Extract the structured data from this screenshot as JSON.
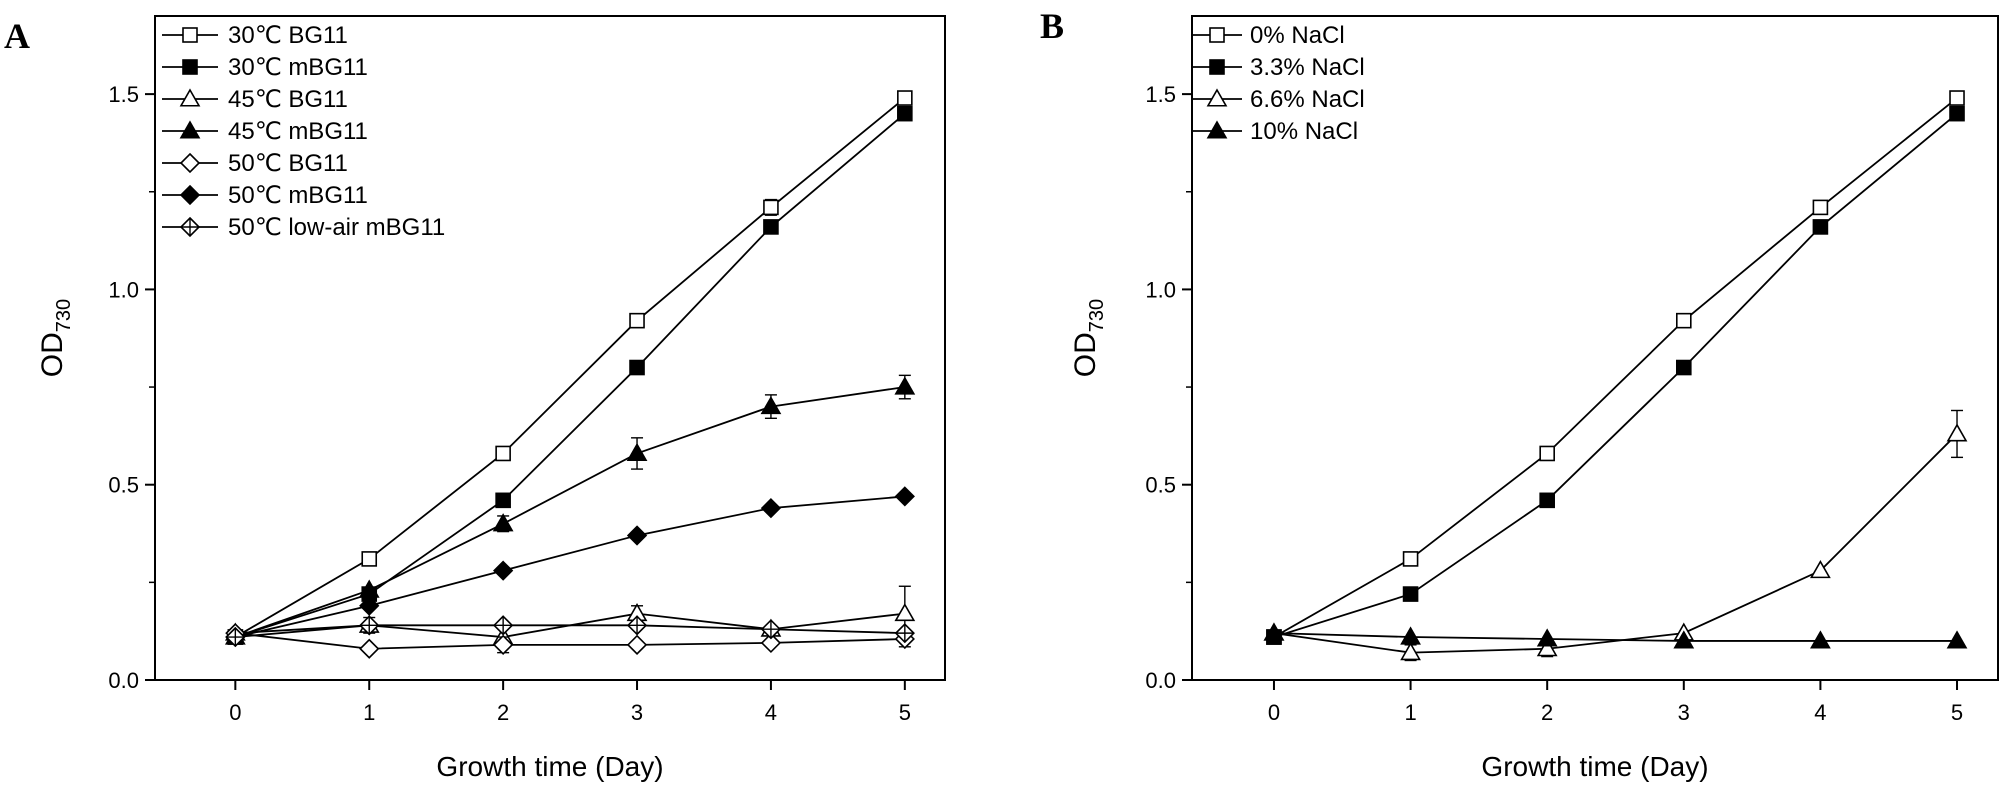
{
  "chart_data": [
    {
      "type": "line",
      "panel_label": "A",
      "xlabel": "Growth time (Day)",
      "ylabel_main": "OD",
      "ylabel_sub": "730",
      "xlim": [
        -0.6,
        5.3
      ],
      "ylim": [
        0,
        1.7
      ],
      "xticks": [
        0,
        1,
        2,
        3,
        4,
        5
      ],
      "yticks": [
        0.0,
        0.5,
        1.0,
        1.5
      ],
      "ytick_labels": [
        "0.0",
        "0.5",
        "1.0",
        "1.5"
      ],
      "grid": false,
      "legend_position": "top-left",
      "x": [
        0,
        1,
        2,
        3,
        4,
        5
      ],
      "series": [
        {
          "name": "30℃ BG11",
          "marker": "square-open",
          "values": [
            0.11,
            0.31,
            0.58,
            0.92,
            1.21,
            1.49
          ],
          "errors": [
            0,
            0,
            0,
            0,
            0.02,
            0
          ]
        },
        {
          "name": "30℃ mBG11",
          "marker": "square-filled",
          "values": [
            0.11,
            0.22,
            0.46,
            0.8,
            1.16,
            1.45
          ],
          "errors": [
            0,
            0,
            0,
            0,
            0,
            0
          ]
        },
        {
          "name": "45℃ BG11",
          "marker": "triangle-open",
          "values": [
            0.12,
            0.14,
            0.11,
            0.17,
            0.13,
            0.17
          ],
          "errors": [
            0,
            0,
            0,
            0.02,
            0,
            0.07
          ]
        },
        {
          "name": "45℃ mBG11",
          "marker": "triangle-filled",
          "values": [
            0.11,
            0.23,
            0.4,
            0.58,
            0.7,
            0.75
          ],
          "errors": [
            0,
            0,
            0.02,
            0.04,
            0.03,
            0.03
          ]
        },
        {
          "name": "50℃ BG11",
          "marker": "diamond-open",
          "values": [
            0.12,
            0.08,
            0.09,
            0.09,
            0.095,
            0.105
          ],
          "errors": [
            0,
            0,
            0.02,
            0,
            0,
            0.02
          ]
        },
        {
          "name": "50℃ mBG11",
          "marker": "diamond-filled",
          "values": [
            0.11,
            0.19,
            0.28,
            0.37,
            0.44,
            0.47
          ],
          "errors": [
            0,
            0,
            0,
            0,
            0,
            0
          ]
        },
        {
          "name": "50℃ low-air mBG11",
          "marker": "diamond-cross",
          "values": [
            0.11,
            0.14,
            0.14,
            0.14,
            0.13,
            0.12
          ],
          "errors": [
            0,
            0.02,
            0,
            0,
            0,
            0
          ]
        }
      ]
    },
    {
      "type": "line",
      "panel_label": "B",
      "xlabel": "Growth time (Day)",
      "ylabel_main": "OD",
      "ylabel_sub": "730",
      "xlim": [
        -0.6,
        5.3
      ],
      "ylim": [
        0,
        1.7
      ],
      "xticks": [
        0,
        1,
        2,
        3,
        4,
        5
      ],
      "yticks": [
        0.0,
        0.5,
        1.0,
        1.5
      ],
      "ytick_labels": [
        "0.0",
        "0.5",
        "1.0",
        "1.5"
      ],
      "grid": false,
      "legend_position": "top-left",
      "x": [
        0,
        1,
        2,
        3,
        4,
        5
      ],
      "series": [
        {
          "name": "0% NaCl",
          "marker": "square-open",
          "values": [
            0.11,
            0.31,
            0.58,
            0.92,
            1.21,
            1.49
          ],
          "errors": [
            0,
            0,
            0,
            0,
            0,
            0
          ]
        },
        {
          "name": "3.3% NaCl",
          "marker": "square-filled",
          "values": [
            0.11,
            0.22,
            0.46,
            0.8,
            1.16,
            1.45
          ],
          "errors": [
            0,
            0,
            0,
            0,
            0,
            0
          ]
        },
        {
          "name": "6.6% NaCl",
          "marker": "triangle-open",
          "values": [
            0.12,
            0.07,
            0.08,
            0.12,
            0.28,
            0.63
          ],
          "errors": [
            0,
            0.02,
            0.02,
            0,
            0,
            0.06
          ]
        },
        {
          "name": "10% NaCl",
          "marker": "triangle-filled",
          "values": [
            0.12,
            0.11,
            0.105,
            0.1,
            0.1,
            0.1
          ],
          "errors": [
            0,
            0,
            0,
            0,
            0,
            0
          ]
        }
      ]
    }
  ]
}
